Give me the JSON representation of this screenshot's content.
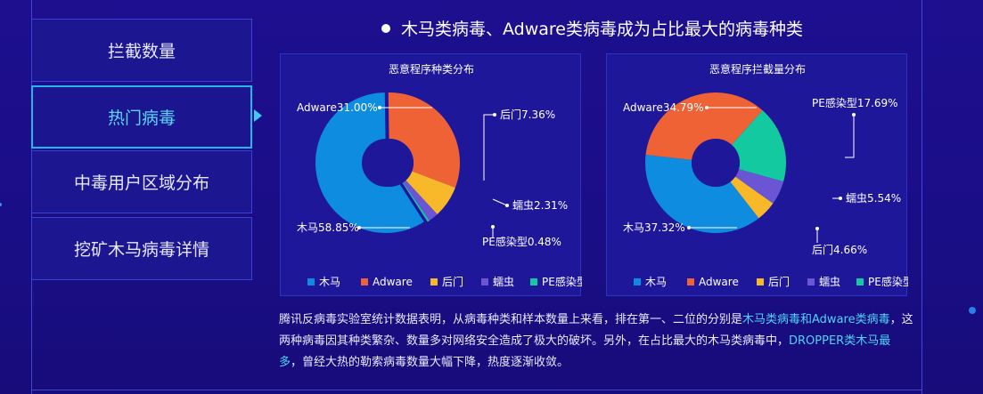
{
  "sidebar": {
    "items": [
      {
        "label": "拦截数量"
      },
      {
        "label": "热门病毒"
      },
      {
        "label": "中毒用户区域分布"
      },
      {
        "label": "挖矿木马病毒详情"
      }
    ],
    "active_index": 1
  },
  "headline": "木马类病毒、Adware类病毒成为占比最大的病毒种类",
  "colors": {
    "木马": "#0e8ce0",
    "Adware": "#ef6236",
    "后门": "#f7b829",
    "蠕虫": "#6a55d5",
    "PE感染型": "#13c9a0",
    "accent": "#4fd3f3"
  },
  "chart_data": [
    {
      "type": "pie",
      "title": "恶意程序种类分布",
      "legend": [
        "木马",
        "Adware",
        "后门",
        "蠕虫",
        "PE感染型"
      ],
      "legend_position": "bottom",
      "slices": [
        {
          "name": "木马",
          "value": 58.85,
          "label": "木马58.85%"
        },
        {
          "name": "Adware",
          "value": 31.0,
          "label": "Adware31.00%"
        },
        {
          "name": "后门",
          "value": 7.36,
          "label": "后门7.36%"
        },
        {
          "name": "蠕虫",
          "value": 2.31,
          "label": "蠕虫2.31%"
        },
        {
          "name": "PE感染型",
          "value": 0.48,
          "label": "PE感染型0.48%"
        }
      ]
    },
    {
      "type": "pie",
      "title": "恶意程序拦截量分布",
      "legend": [
        "木马",
        "Adware",
        "后门",
        "蠕虫",
        "PE感染型"
      ],
      "legend_position": "bottom",
      "slices": [
        {
          "name": "木马",
          "value": 37.32,
          "label": "木马37.32%"
        },
        {
          "name": "Adware",
          "value": 34.79,
          "label": "Adware34.79%"
        },
        {
          "name": "PE感染型",
          "value": 17.69,
          "label": "PE感染型17.69%"
        },
        {
          "name": "蠕虫",
          "value": 5.54,
          "label": "蠕虫5.54%"
        },
        {
          "name": "后门",
          "value": 4.66,
          "label": "后门4.66%"
        }
      ]
    }
  ],
  "description": {
    "part1": "腾讯反病毒实验室统计数据表明，从病毒种类和样本数量上来看，排在第一、二位的分别是",
    "hl1": "木马类病毒和Adware类病毒",
    "part2": "，这两种病毒因其种类繁杂、数量多对网络安全造成了极大的破坏。另外，在占比最大的木马类病毒中，",
    "hl2": "DROPPER类木马最多",
    "part3": "，曾经大热的勒索病毒数量大幅下降，热度逐渐收敛。"
  }
}
